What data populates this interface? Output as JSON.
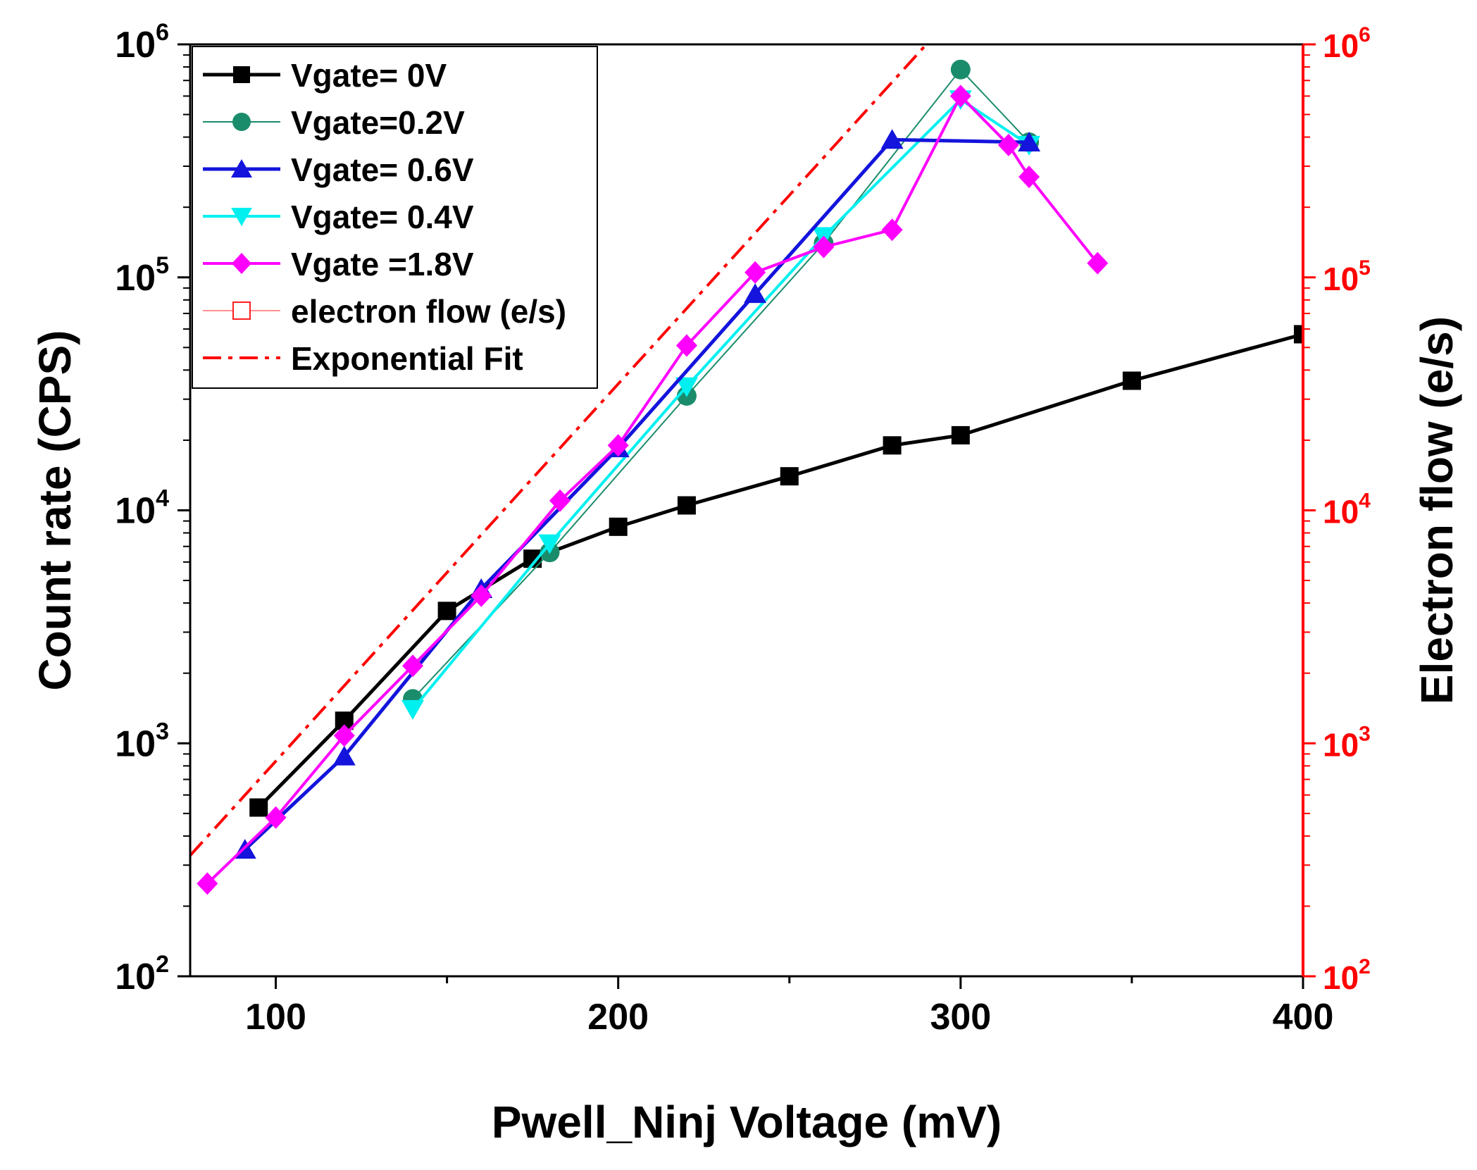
{
  "chart_data": {
    "type": "line",
    "xlabel": "Pwell_Ninj Voltage (mV)",
    "ylabel_left": "Count rate (CPS)",
    "ylabel_right": "Electron flow (e/s)",
    "xlim": [
      75,
      400
    ],
    "ylim": [
      100,
      1000000
    ],
    "yscale": "log",
    "x_ticks": [
      100,
      200,
      300,
      400
    ],
    "y_ticks": [
      {
        "value": 100,
        "base": "10",
        "exp": "2"
      },
      {
        "value": 1000,
        "base": "10",
        "exp": "3"
      },
      {
        "value": 10000,
        "base": "10",
        "exp": "4"
      },
      {
        "value": 100000,
        "base": "10",
        "exp": "5"
      },
      {
        "value": 1000000,
        "base": "10",
        "exp": "6"
      }
    ],
    "legend_position": "top-left",
    "right_axis_color": "#ff0000",
    "series": [
      {
        "name": "Vgate= 0V",
        "color": "#000000",
        "marker": "square",
        "line_width": 5,
        "x": [
          95,
          120,
          150,
          175,
          200,
          220,
          250,
          280,
          300,
          350,
          400
        ],
        "y": [
          530,
          1250,
          3700,
          6200,
          8500,
          10500,
          14000,
          19000,
          21000,
          36000,
          57000
        ]
      },
      {
        "name": "Vgate=0.2V",
        "color": "#1b8c6b",
        "marker": "circle",
        "line_width": 2,
        "x": [
          140,
          180,
          220,
          260,
          300,
          320
        ],
        "y": [
          1550,
          6600,
          31000,
          140000,
          780000,
          380000
        ]
      },
      {
        "name": "Vgate= 0.6V",
        "color": "#1414dc",
        "marker": "triangle-up",
        "line_width": 5,
        "x": [
          91,
          120,
          160,
          200,
          240,
          280,
          320
        ],
        "y": [
          350,
          880,
          4600,
          18500,
          85000,
          390000,
          380000
        ]
      },
      {
        "name": "Vgate= 0.4V",
        "color": "#00f0f0",
        "marker": "triangle-down",
        "line_width": 4,
        "x": [
          140,
          180,
          220,
          260,
          300,
          320
        ],
        "y": [
          1400,
          7200,
          34000,
          150000,
          580000,
          370000
        ]
      },
      {
        "name": "Vgate =1.8V",
        "color": "#ff00ff",
        "marker": "diamond",
        "line_width": 4,
        "x": [
          80,
          100,
          120,
          140,
          160,
          183,
          200,
          220,
          240,
          260,
          280,
          300,
          314,
          320,
          340
        ],
        "y": [
          250,
          480,
          1080,
          2150,
          4300,
          11000,
          19000,
          51000,
          105000,
          135000,
          160000,
          600000,
          370000,
          270000,
          115000
        ]
      },
      {
        "name": "electron flow (e/s)",
        "color": "#ff2020",
        "marker": "open-square",
        "line_width": 1,
        "x": [],
        "y": []
      },
      {
        "name": "Exponential Fit",
        "color": "#ff0000",
        "marker": "none",
        "line_width": 4,
        "dash": "dash-dot",
        "x": [
          75,
          290
        ],
        "y": [
          330,
          1000000
        ]
      }
    ]
  }
}
